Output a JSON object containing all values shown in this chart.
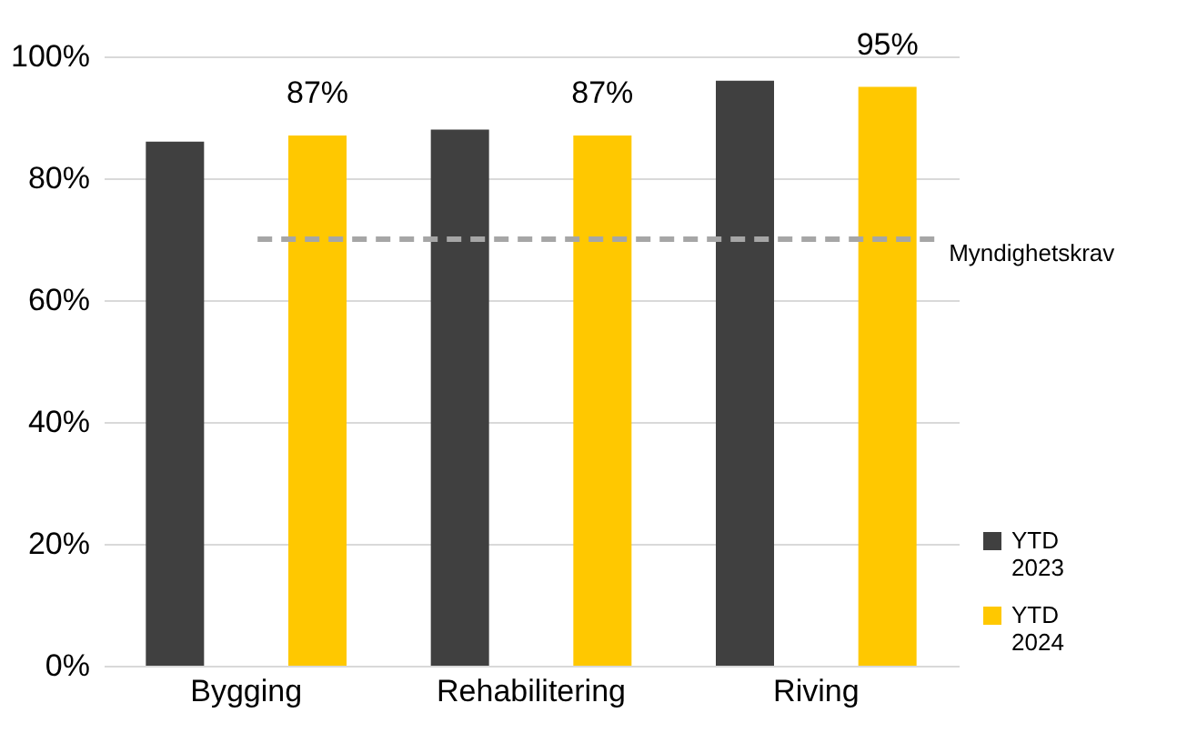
{
  "chart_data": {
    "type": "bar",
    "categories": [
      "Bygging",
      "Rehabilitering",
      "Riving"
    ],
    "series": [
      {
        "name": "YTD 2023",
        "color": "#404040",
        "values": [
          86,
          88,
          96
        ]
      },
      {
        "name": "YTD 2024",
        "color": "#ffc800",
        "values": [
          87,
          87,
          95
        ],
        "value_labels": [
          "87%",
          "87%",
          "95%"
        ]
      }
    ],
    "ylim": [
      0,
      100
    ],
    "yticks": [
      {
        "value": 0,
        "label": "0%"
      },
      {
        "value": 20,
        "label": "20%"
      },
      {
        "value": 40,
        "label": "40%"
      },
      {
        "value": 60,
        "label": "60%"
      },
      {
        "value": 80,
        "label": "80%"
      },
      {
        "value": 100,
        "label": "100%"
      }
    ],
    "grid": "y",
    "legend": "bottom right",
    "ref_lines": [
      {
        "axis": "y",
        "value": 70,
        "label": "Myndighetskrav",
        "color": "#a6a6a6",
        "line_style": "dashed"
      }
    ]
  }
}
